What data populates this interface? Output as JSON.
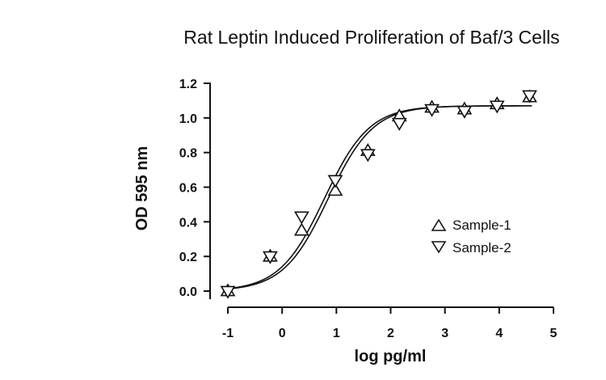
{
  "chart_data": {
    "type": "scatter",
    "title": "Rat Leptin Induced Proliferation of Baf/3 Cells",
    "xlabel": "log pg/ml",
    "ylabel": "OD 595 nm",
    "xlim": [
      -1,
      5
    ],
    "ylim": [
      0,
      1.2
    ],
    "x_ticks": [
      "-1",
      "0",
      "1",
      "2",
      "3",
      "4",
      "5"
    ],
    "y_ticks": [
      "0.0",
      "0.2",
      "0.4",
      "0.6",
      "0.8",
      "1.0",
      "1.2"
    ],
    "legend_position": "center-right",
    "grid": false,
    "series": [
      {
        "name": "Sample-1",
        "marker": "triangle-up",
        "x": [
          -1.0,
          -0.22,
          0.36,
          0.98,
          1.58,
          2.16,
          2.76,
          3.36,
          3.96,
          4.56
        ],
        "y": [
          0.0,
          0.2,
          0.35,
          0.58,
          0.81,
          1.01,
          1.06,
          1.05,
          1.08,
          1.12
        ],
        "fit_curve": {
          "bottom": 0.0,
          "top": 1.07,
          "log_ec50": 0.85,
          "hill_slope": 1.05
        }
      },
      {
        "name": "Sample-2",
        "marker": "triangle-down",
        "x": [
          -1.0,
          -0.22,
          0.36,
          0.98,
          1.58,
          2.16,
          2.76,
          3.36,
          3.96,
          4.56
        ],
        "y": [
          0.0,
          0.2,
          0.43,
          0.64,
          0.79,
          0.97,
          1.05,
          1.04,
          1.07,
          1.13
        ],
        "fit_curve": {
          "bottom": 0.0,
          "top": 1.07,
          "log_ec50": 0.78,
          "hill_slope": 1.05
        }
      }
    ]
  }
}
